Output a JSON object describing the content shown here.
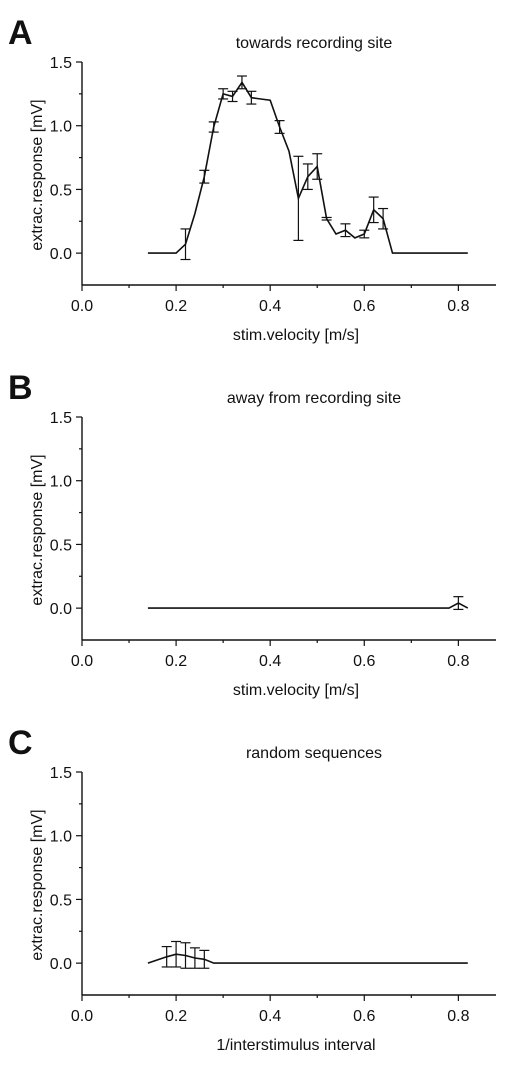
{
  "chart_data": [
    {
      "panel": "A",
      "type": "line",
      "title": "towards recording site",
      "xlabel": "stim.velocity [m/s]",
      "ylabel": "extrac.response [mV]",
      "xlim": [
        0.0,
        0.88
      ],
      "ylim": [
        -0.25,
        1.5
      ],
      "xticks": [
        "0.0",
        "0.2",
        "0.4",
        "0.6",
        "0.8"
      ],
      "yticks": [
        "0.0",
        "0.5",
        "1.0",
        "1.5"
      ],
      "x": [
        0.14,
        0.2,
        0.22,
        0.24,
        0.26,
        0.28,
        0.3,
        0.32,
        0.34,
        0.36,
        0.38,
        0.4,
        0.42,
        0.44,
        0.46,
        0.48,
        0.5,
        0.52,
        0.54,
        0.56,
        0.58,
        0.6,
        0.62,
        0.64,
        0.66,
        0.82
      ],
      "y": [
        0.0,
        0.0,
        0.07,
        0.31,
        0.6,
        0.99,
        1.25,
        1.23,
        1.34,
        1.22,
        1.21,
        1.2,
        0.99,
        0.8,
        0.43,
        0.6,
        0.68,
        0.27,
        0.15,
        0.18,
        0.12,
        0.15,
        0.34,
        0.27,
        0.0,
        0.0
      ],
      "err": [
        0,
        0,
        0.12,
        0,
        0.05,
        0.04,
        0.04,
        0.04,
        0.05,
        0.05,
        0,
        0,
        0.05,
        0,
        0.33,
        0.1,
        0.1,
        0.01,
        0,
        0.05,
        0,
        0.03,
        0.1,
        0.08,
        0,
        0
      ]
    },
    {
      "panel": "B",
      "type": "line",
      "title": "away from recording site",
      "xlabel": "stim.velocity [m/s]",
      "ylabel": "extrac.response [mV]",
      "xlim": [
        0.0,
        0.88
      ],
      "ylim": [
        -0.25,
        1.5
      ],
      "xticks": [
        "0.0",
        "0.2",
        "0.4",
        "0.6",
        "0.8"
      ],
      "yticks": [
        "0.0",
        "0.5",
        "1.0",
        "1.5"
      ],
      "x": [
        0.14,
        0.78,
        0.8,
        0.82
      ],
      "y": [
        0.0,
        0.0,
        0.04,
        0.0
      ],
      "err": [
        0,
        0,
        0.05,
        0
      ]
    },
    {
      "panel": "C",
      "type": "line",
      "title": "random sequences",
      "xlabel": "1/interstimulus interval",
      "ylabel": "extrac.response [mV]",
      "xlim": [
        0.0,
        0.88
      ],
      "ylim": [
        -0.25,
        1.5
      ],
      "xticks": [
        "0.0",
        "0.2",
        "0.4",
        "0.6",
        "0.8"
      ],
      "yticks": [
        "0.0",
        "0.5",
        "1.0",
        "1.5"
      ],
      "x": [
        0.14,
        0.18,
        0.2,
        0.22,
        0.24,
        0.26,
        0.28,
        0.82
      ],
      "y": [
        0.0,
        0.05,
        0.07,
        0.06,
        0.04,
        0.03,
        0.0,
        0.0
      ],
      "err": [
        0,
        0.08,
        0.1,
        0.1,
        0.08,
        0.07,
        0,
        0
      ]
    }
  ]
}
